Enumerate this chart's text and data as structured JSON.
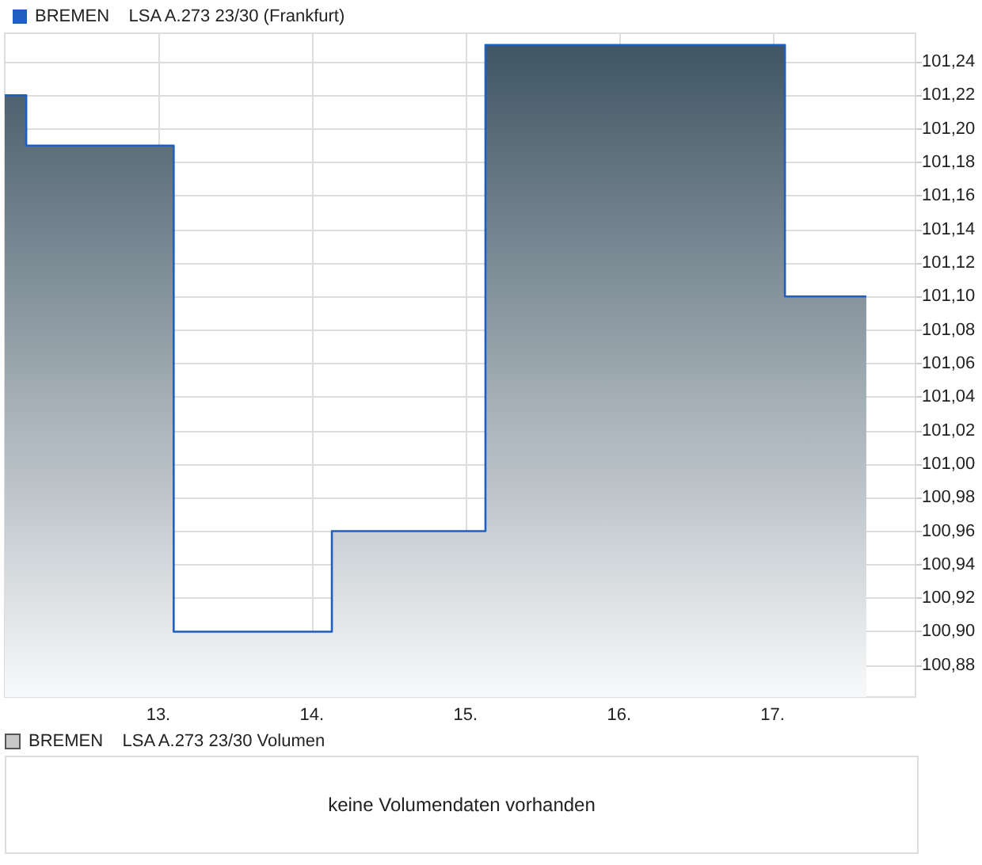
{
  "chart_data": [
    {
      "type": "area",
      "legend": "top left",
      "grid": true,
      "marker": "none",
      "line_style": "solid",
      "xlim": [
        12.0,
        17.93
      ],
      "ylim": [
        100.861,
        101.257
      ],
      "xticks": [
        {
          "value": 13,
          "label": "13."
        },
        {
          "value": 14,
          "label": "14."
        },
        {
          "value": 15,
          "label": "15."
        },
        {
          "value": 16,
          "label": "16."
        },
        {
          "value": 17,
          "label": "17."
        }
      ],
      "yticks": [
        {
          "value": 100.88,
          "label": "100,88"
        },
        {
          "value": 100.9,
          "label": "100,90"
        },
        {
          "value": 100.92,
          "label": "100,92"
        },
        {
          "value": 100.94,
          "label": "100,94"
        },
        {
          "value": 100.96,
          "label": "100,96"
        },
        {
          "value": 100.98,
          "label": "100,98"
        },
        {
          "value": 101.0,
          "label": "101,00"
        },
        {
          "value": 101.02,
          "label": "101,02"
        },
        {
          "value": 101.04,
          "label": "101,04"
        },
        {
          "value": 101.06,
          "label": "101,06"
        },
        {
          "value": 101.08,
          "label": "101,08"
        },
        {
          "value": 101.1,
          "label": "101,10"
        },
        {
          "value": 101.12,
          "label": "101,12"
        },
        {
          "value": 101.14,
          "label": "101,14"
        },
        {
          "value": 101.16,
          "label": "101,16"
        },
        {
          "value": 101.18,
          "label": "101,18"
        },
        {
          "value": 101.2,
          "label": "101,20"
        },
        {
          "value": 101.22,
          "label": "101,22"
        },
        {
          "value": 101.24,
          "label": "101,24"
        }
      ],
      "series": [
        {
          "type": "area",
          "name": "BREMEN    LSA A.273 23/30 (Frankfurt)",
          "color": "#1f5fbf",
          "x": [
            12.0,
            12.14,
            12.14,
            13.1,
            13.1,
            14.13,
            14.13,
            15.13,
            15.13,
            17.08,
            17.08,
            17.61
          ],
          "values": [
            101.22,
            101.22,
            101.19,
            101.19,
            100.9,
            100.9,
            100.96,
            100.96,
            101.25,
            101.25,
            101.1,
            101.1
          ]
        }
      ]
    },
    {
      "type": "other",
      "title": "BREMEN    LSA A.273 23/30 Volumen",
      "annotations": [
        "keine Volumendaten vorhanden"
      ]
    }
  ]
}
